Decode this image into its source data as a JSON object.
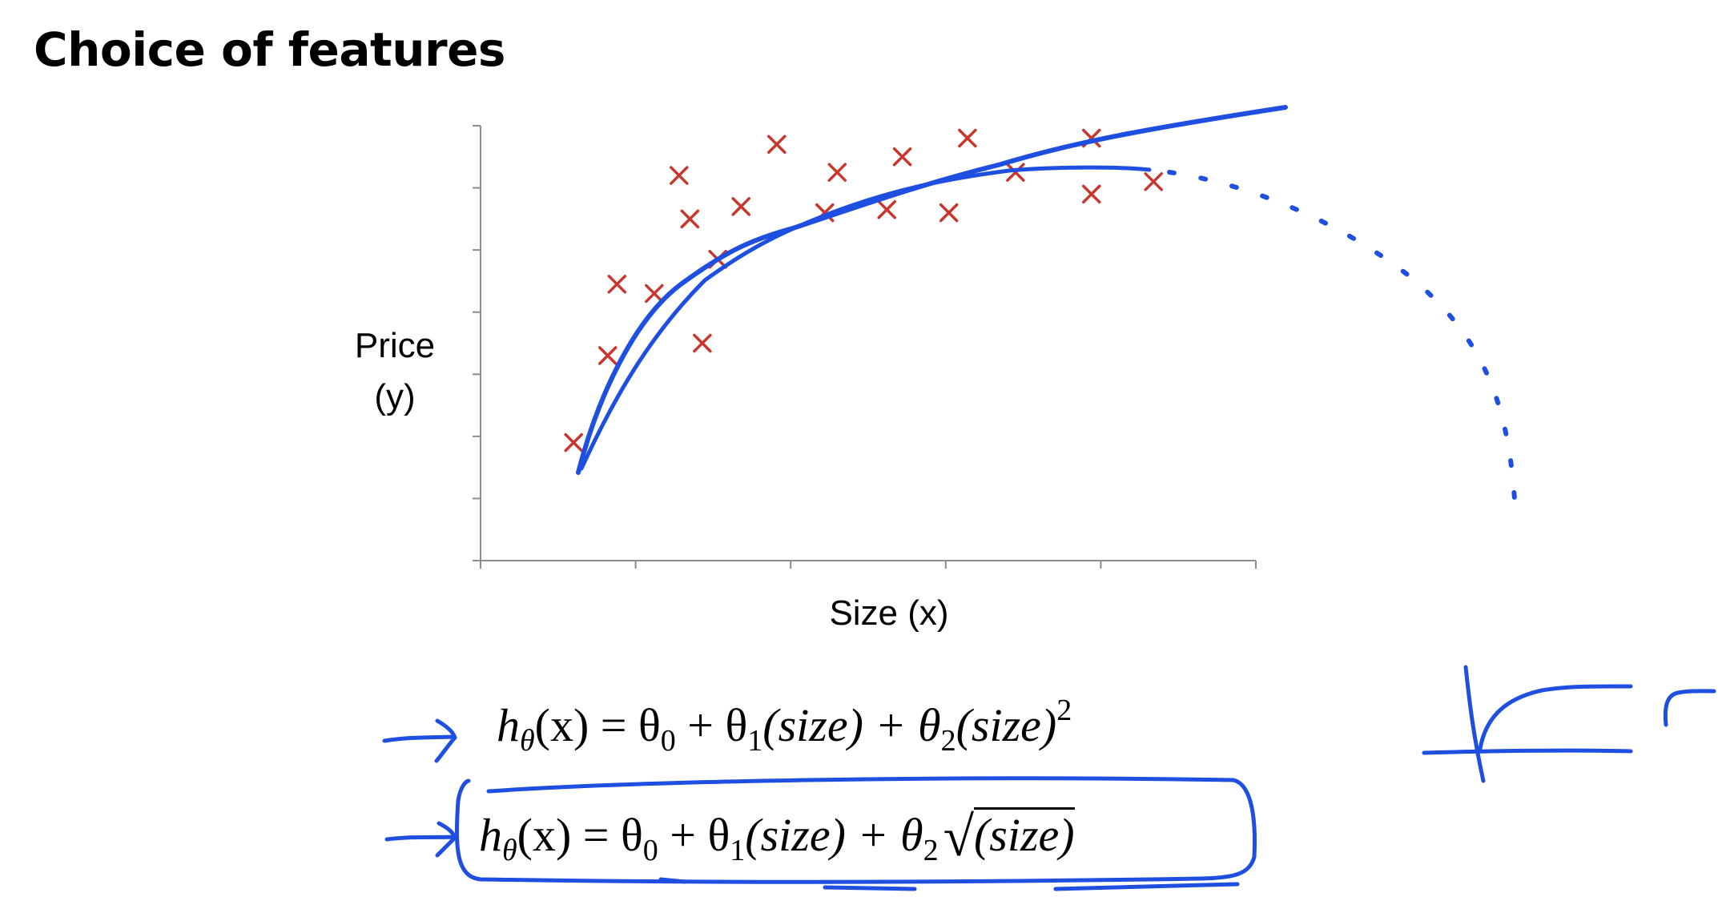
{
  "slide": {
    "title": "Choice of features"
  },
  "chart_data": {
    "type": "scatter",
    "title": "",
    "xlabel": "Size (x)",
    "ylabel_lines": [
      "Price",
      "(y)"
    ],
    "xlim": [
      0,
      5
    ],
    "ylim": [
      0,
      7
    ],
    "x_ticks": [
      0,
      1,
      2,
      3,
      4,
      5
    ],
    "y_ticks": [
      0,
      1,
      2,
      3,
      4,
      5,
      6,
      7
    ],
    "grid": false,
    "legend": "none",
    "marker_color": "#c8372d",
    "annotation_color": "#1f4fe0",
    "points": [
      {
        "x": 0.6,
        "y": 1.9
      },
      {
        "x": 0.82,
        "y": 3.3
      },
      {
        "x": 0.88,
        "y": 4.45
      },
      {
        "x": 1.12,
        "y": 4.3
      },
      {
        "x": 1.28,
        "y": 6.2
      },
      {
        "x": 1.35,
        "y": 5.5
      },
      {
        "x": 1.43,
        "y": 3.5
      },
      {
        "x": 1.53,
        "y": 4.85
      },
      {
        "x": 1.68,
        "y": 5.7
      },
      {
        "x": 1.91,
        "y": 6.7
      },
      {
        "x": 2.22,
        "y": 5.6
      },
      {
        "x": 2.3,
        "y": 6.25
      },
      {
        "x": 2.62,
        "y": 5.65
      },
      {
        "x": 2.72,
        "y": 6.5
      },
      {
        "x": 3.02,
        "y": 5.6
      },
      {
        "x": 3.14,
        "y": 6.8
      },
      {
        "x": 3.45,
        "y": 6.25
      },
      {
        "x": 3.94,
        "y": 6.8
      },
      {
        "x": 3.94,
        "y": 5.9
      },
      {
        "x": 4.34,
        "y": 6.1
      }
    ]
  },
  "formulas": {
    "quadratic": {
      "h": "h",
      "h_sub": "θ",
      "lhs_arg": "(x) = θ",
      "t0": "0",
      "plus1": " + θ",
      "t1": "1",
      "size1": "(size) + θ",
      "t2": "2",
      "size2": "(size)",
      "power": "2"
    },
    "sqrt": {
      "h": "h",
      "h_sub": "θ",
      "lhs_arg": "(x) = θ",
      "t0": "0",
      "plus1": " + θ",
      "t1": "1",
      "size1": "(size) + θ",
      "t2": "2",
      "radical": "√",
      "radicand": "(size)"
    }
  }
}
